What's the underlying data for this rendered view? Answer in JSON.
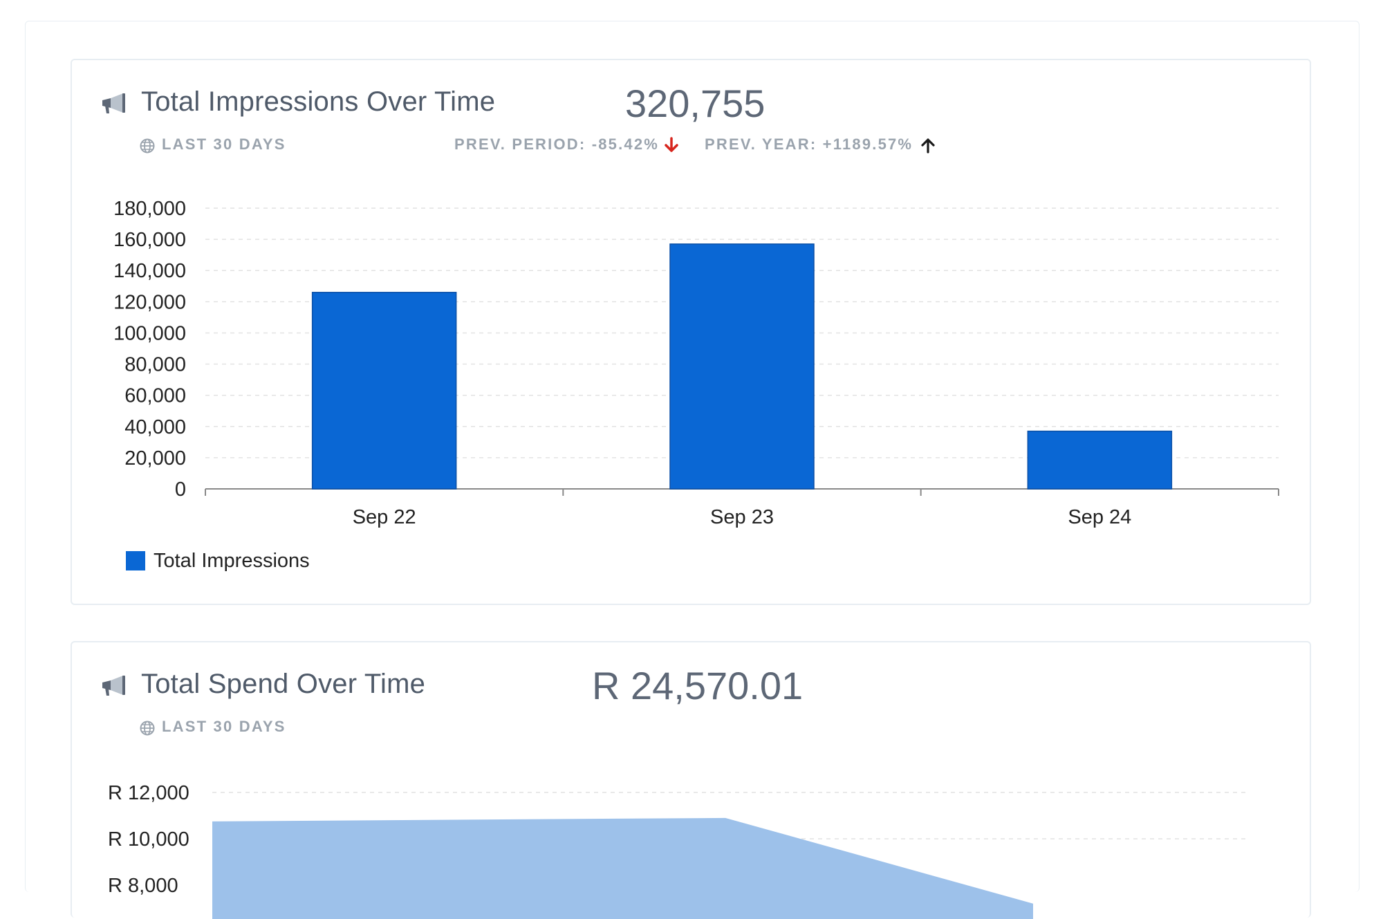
{
  "cards": [
    {
      "title": "Total Impressions Over Time",
      "period": "LAST 30 DAYS",
      "total": "320,755",
      "prev_period": "PREV. PERIOD: -85.42%",
      "prev_period_direction": "down",
      "prev_year": "PREV. YEAR: +1189.57%",
      "prev_year_direction": "up",
      "icon": "megaphone-icon"
    },
    {
      "title": "Total Spend Over Time",
      "period": "LAST 30 DAYS",
      "total": "R 24,570.01",
      "icon": "megaphone-icon"
    }
  ],
  "colors": {
    "bar": "#0a67d4",
    "area": "#9dc1ea",
    "down_arrow": "#d7251d",
    "up_arrow": "#1a1a1a"
  },
  "chart_data": [
    {
      "type": "bar",
      "categories": [
        "Sep 22",
        "Sep 23",
        "Sep 24"
      ],
      "series": [
        {
          "name": "Total Impressions",
          "values": [
            126000,
            157000,
            37000
          ]
        }
      ],
      "ylim": [
        0,
        180000
      ],
      "yticks": [
        0,
        20000,
        40000,
        60000,
        80000,
        100000,
        120000,
        140000,
        160000,
        180000
      ],
      "ytick_labels": [
        "0",
        "20,000",
        "40,000",
        "60,000",
        "80,000",
        "100,000",
        "120,000",
        "140,000",
        "160,000",
        "180,000"
      ],
      "grid": true,
      "legend": "bottom-left"
    },
    {
      "type": "area",
      "yticks": [
        10000,
        12000
      ],
      "ytick_labels": [
        "R 10,000",
        "R 12,000"
      ],
      "partial_tick_label": "R 8,000",
      "points": [
        {
          "x": 0,
          "y": 10750
        },
        {
          "x": 1,
          "y": 10900
        },
        {
          "x": 2,
          "y": 7200
        }
      ],
      "grid": true
    }
  ]
}
